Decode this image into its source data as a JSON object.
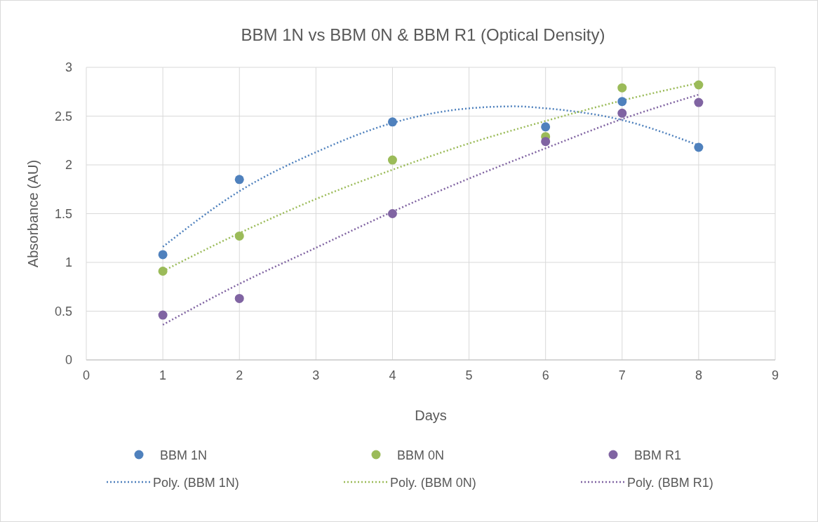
{
  "chart_data": {
    "type": "scatter",
    "title": "BBM 1N vs BBM 0N & BBM R1 (Optical Density)",
    "xlabel": "Days",
    "ylabel": "Absorbance  (AU)",
    "x": [
      1,
      2,
      4,
      6,
      7,
      8
    ],
    "series": [
      {
        "name": "BBM 1N",
        "color": "#4f81bd",
        "values": [
          1.08,
          1.85,
          2.44,
          2.39,
          2.65,
          2.18
        ]
      },
      {
        "name": "BBM 0N",
        "color": "#9bbb59",
        "values": [
          0.91,
          1.27,
          2.05,
          2.29,
          2.79,
          2.82
        ]
      },
      {
        "name": "BBM R1",
        "color": "#8064a2",
        "values": [
          0.46,
          0.63,
          1.5,
          2.24,
          2.53,
          2.64
        ]
      },
      {
        "name": "Poly. (BBM 1N)",
        "type": "line",
        "marker": "none",
        "color": "#4f81bd",
        "x": [
          1,
          2,
          3,
          4,
          5,
          5.6,
          6,
          7,
          8
        ],
        "values": [
          1.16,
          1.73,
          2.13,
          2.43,
          2.58,
          2.6,
          2.58,
          2.46,
          2.2
        ]
      },
      {
        "name": "Poly. (BBM 0N)",
        "type": "line",
        "marker": "none",
        "color": "#9bbb59",
        "x": [
          1,
          2,
          3,
          4,
          5,
          6,
          7,
          8
        ],
        "values": [
          0.91,
          1.3,
          1.65,
          1.95,
          2.22,
          2.45,
          2.66,
          2.84
        ]
      },
      {
        "name": "Poly. (BBM R1)",
        "type": "line",
        "marker": "none",
        "color": "#8064a2",
        "x": [
          1,
          2,
          3,
          4,
          5,
          6,
          7,
          8
        ],
        "values": [
          0.36,
          0.78,
          1.15,
          1.52,
          1.86,
          2.17,
          2.47,
          2.72
        ]
      }
    ],
    "xlim": [
      0,
      9
    ],
    "xticks": [
      0,
      1,
      2,
      3,
      4,
      5,
      6,
      7,
      8,
      9
    ],
    "ylim": [
      0,
      3
    ],
    "yticks": [
      0,
      0.5,
      1,
      1.5,
      2,
      2.5,
      3
    ],
    "grid": true,
    "legend": "bottom",
    "marker": "circle",
    "line_style": "dotted"
  }
}
